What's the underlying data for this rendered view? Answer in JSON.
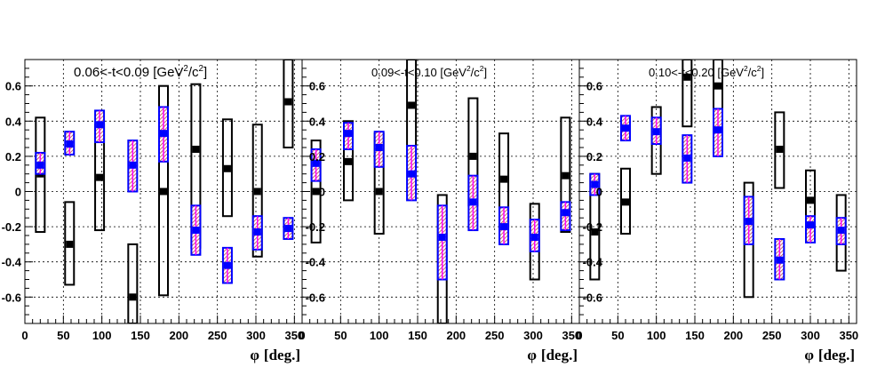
{
  "chart_data": [
    {
      "type": "scatter",
      "title": "0.06<-t<0.09 [GeV",
      "title_exp": "2",
      "title_mid": "/c",
      "title_end": "]",
      "xlabel_symbol": "φ",
      "xlabel_unit": "[deg.]",
      "xlim": [
        0,
        360
      ],
      "ylim": [
        -0.75,
        0.75
      ],
      "grid": true,
      "xticks": [
        "0",
        "50",
        "100",
        "150",
        "200",
        "250",
        "300",
        "350"
      ],
      "yticks": [
        "-0.6",
        "-0.4",
        "-0.2",
        "0",
        "0.2",
        "0.4",
        "0.6"
      ],
      "series": [
        {
          "marker": "square",
          "color": "#000000",
          "x": [
            20,
            58,
            97,
            140,
            180,
            222,
            263,
            302,
            342
          ],
          "y": [
            0.1,
            -0.3,
            0.08,
            -0.6,
            0.0,
            0.24,
            0.13,
            0.0,
            0.51
          ],
          "band": [
            [
              -0.23,
              0.42
            ],
            [
              -0.53,
              -0.06
            ],
            [
              -0.22,
              0.38
            ],
            [
              -0.75,
              -0.3
            ],
            [
              -0.59,
              0.6
            ],
            [
              -0.32,
              0.61
            ],
            [
              -0.14,
              0.41
            ],
            [
              -0.37,
              0.38
            ],
            [
              0.25,
              0.75
            ]
          ]
        },
        {
          "marker": "square",
          "color": "#0000ff",
          "x": [
            20,
            58,
            97,
            140,
            180,
            222,
            263,
            302,
            342
          ],
          "y": [
            0.15,
            0.27,
            0.38,
            0.15,
            0.33,
            -0.22,
            -0.42,
            -0.23,
            -0.21
          ],
          "band": [
            [
              0.1,
              0.22
            ],
            [
              0.21,
              0.34
            ],
            [
              0.28,
              0.46
            ],
            [
              0.0,
              0.29
            ],
            [
              0.17,
              0.48
            ],
            [
              -0.36,
              -0.08
            ],
            [
              -0.52,
              -0.32
            ],
            [
              -0.33,
              -0.14
            ],
            [
              -0.27,
              -0.15
            ]
          ]
        }
      ]
    },
    {
      "type": "scatter",
      "title": "0.09<-t<0.10 [GeV",
      "title_exp": "2",
      "title_mid": "/c",
      "title_end": "]",
      "xlabel_symbol": "φ",
      "xlabel_unit": "[deg.]",
      "xlim": [
        0,
        360
      ],
      "ylim": [
        -0.75,
        0.75
      ],
      "grid": true,
      "xticks": [
        "0",
        "50",
        "100",
        "150",
        "200",
        "250",
        "300",
        "350"
      ],
      "yticks": [
        "-0.6",
        "-0.4",
        "-0.2",
        "0",
        "0.2",
        "0.4",
        "0.6"
      ],
      "series": [
        {
          "marker": "square",
          "color": "#000000",
          "x": [
            18,
            60,
            100,
            142,
            182,
            222,
            262,
            302,
            342
          ],
          "y": [
            0.0,
            0.17,
            0.0,
            0.49,
            -0.4,
            0.2,
            0.07,
            -0.26,
            0.09
          ],
          "band": [
            [
              -0.29,
              0.29
            ],
            [
              -0.05,
              0.4
            ],
            [
              -0.24,
              0.33
            ],
            [
              0.2,
              0.75
            ],
            [
              -0.75,
              -0.02
            ],
            [
              -0.08,
              0.53
            ],
            [
              -0.2,
              0.33
            ],
            [
              -0.5,
              -0.07
            ],
            [
              -0.23,
              0.42
            ]
          ]
        },
        {
          "marker": "square",
          "color": "#0000ff",
          "x": [
            18,
            60,
            100,
            142,
            182,
            222,
            262,
            302,
            342
          ],
          "y": [
            0.16,
            0.33,
            0.25,
            0.1,
            -0.26,
            -0.06,
            -0.2,
            -0.26,
            -0.12
          ],
          "band": [
            [
              0.06,
              0.24
            ],
            [
              0.24,
              0.39
            ],
            [
              0.14,
              0.34
            ],
            [
              -0.05,
              0.26
            ],
            [
              -0.5,
              -0.08
            ],
            [
              -0.22,
              0.09
            ],
            [
              -0.3,
              -0.09
            ],
            [
              -0.34,
              -0.16
            ],
            [
              -0.22,
              -0.06
            ]
          ]
        }
      ]
    },
    {
      "type": "scatter",
      "title": "0.10<-t<0.20 [GeV",
      "title_exp": "2",
      "title_mid": "/c",
      "title_end": "]",
      "xlabel_symbol": "φ",
      "xlabel_unit": "[deg.]",
      "xlim": [
        0,
        360
      ],
      "ylim": [
        -0.75,
        0.75
      ],
      "grid": true,
      "xticks": [
        "0",
        "50",
        "100",
        "150",
        "200",
        "250",
        "300",
        "350"
      ],
      "yticks": [
        "-0.6",
        "-0.4",
        "-0.2",
        "0",
        "0.2",
        "0.4",
        "0.6"
      ],
      "series": [
        {
          "marker": "square",
          "color": "#000000",
          "x": [
            20,
            60,
            100,
            140,
            180,
            220,
            260,
            300,
            340
          ],
          "y": [
            -0.23,
            -0.06,
            0.3,
            0.65,
            0.6,
            -0.27,
            0.24,
            -0.05,
            -0.23
          ],
          "band": [
            [
              -0.5,
              0.1
            ],
            [
              -0.24,
              0.13
            ],
            [
              0.1,
              0.48
            ],
            [
              0.37,
              0.75
            ],
            [
              0.35,
              0.75
            ],
            [
              -0.6,
              0.05
            ],
            [
              0.02,
              0.45
            ],
            [
              -0.27,
              0.12
            ],
            [
              -0.45,
              -0.02
            ]
          ]
        },
        {
          "marker": "square",
          "color": "#0000ff",
          "x": [
            20,
            60,
            100,
            140,
            180,
            220,
            260,
            300,
            340
          ],
          "y": [
            0.04,
            0.36,
            0.34,
            0.19,
            0.35,
            -0.17,
            -0.39,
            -0.19,
            -0.22
          ],
          "band": [
            [
              -0.02,
              0.1
            ],
            [
              0.29,
              0.43
            ],
            [
              0.27,
              0.42
            ],
            [
              0.05,
              0.32
            ],
            [
              0.2,
              0.47
            ],
            [
              -0.3,
              -0.03
            ],
            [
              -0.5,
              -0.27
            ],
            [
              -0.29,
              -0.14
            ],
            [
              -0.3,
              -0.15
            ]
          ]
        }
      ]
    }
  ]
}
